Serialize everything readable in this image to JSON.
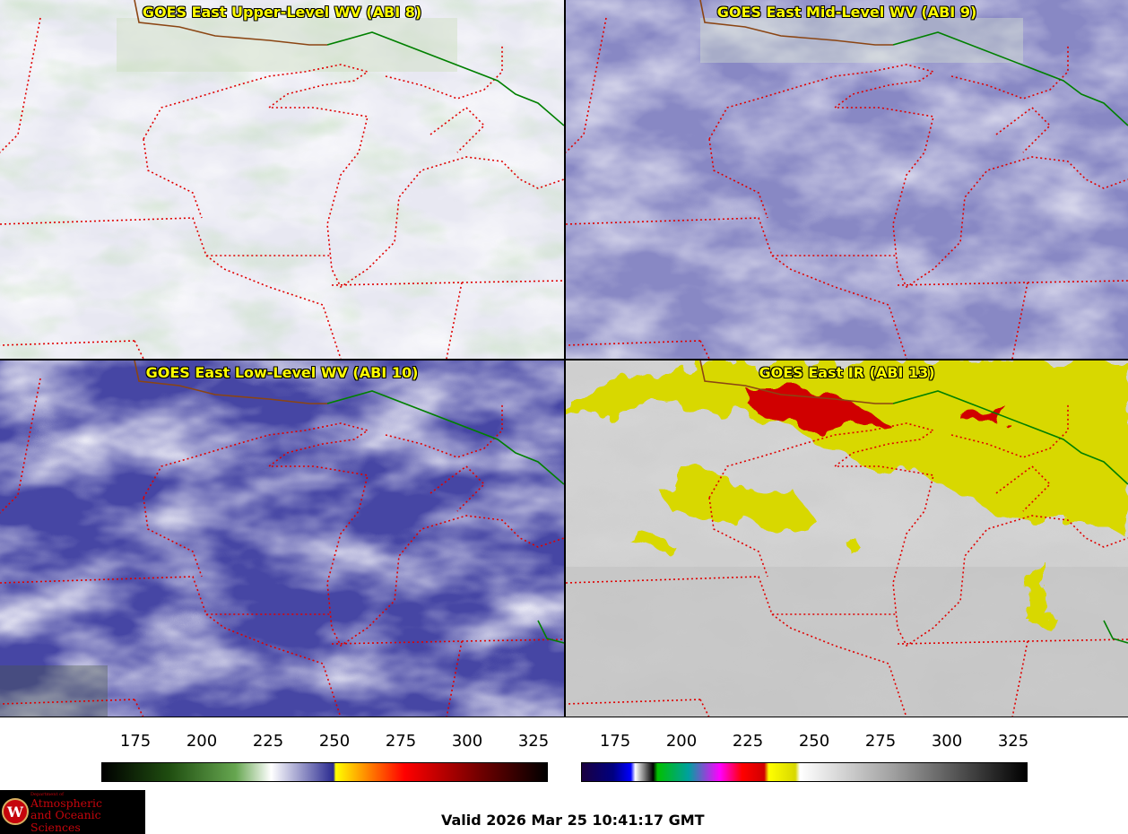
{
  "panels": [
    {
      "id": "upper",
      "title": "GOES East Upper-Level WV (ABI 8)"
    },
    {
      "id": "mid",
      "title": "GOES East Mid-Level WV (ABI 9)"
    },
    {
      "id": "low",
      "title": "GOES East Low-Level WV (ABI 10)"
    },
    {
      "id": "ir",
      "title": "GOES East IR (ABI 13)"
    }
  ],
  "colorbars": [
    {
      "ticks": [
        "175",
        "200",
        "225",
        "250",
        "275",
        "300",
        "325"
      ]
    },
    {
      "ticks": [
        "175",
        "200",
        "225",
        "250",
        "275",
        "300",
        "325"
      ]
    }
  ],
  "logo": {
    "line1": "Department of",
    "line2": "Atmospheric",
    "line3": "and Oceanic Sciences",
    "seal_letter": "W"
  },
  "valid_time": "Valid 2026 Mar 25 10:41:17 GMT",
  "colors": {
    "title": "#ffff00",
    "state_border": "#e00000",
    "intl_border": "#008000",
    "coast": "#8b4513"
  }
}
